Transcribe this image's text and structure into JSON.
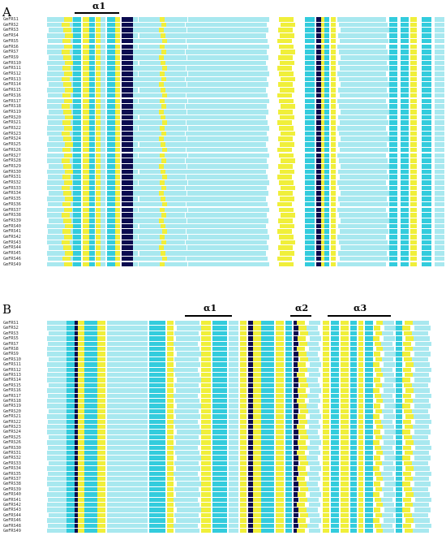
{
  "colors": {
    "identity": "#0b0b50",
    "high": "#33ccdd",
    "mid": "#a8e8ef",
    "low": "#f0ef3a",
    "text": "#333333"
  },
  "panels": [
    {
      "letter": "A",
      "helices": [
        {
          "label": "α1"
        }
      ],
      "sequences": [
        "GmFRS1",
        "GmFRS2",
        "GmFRS3",
        "GmFRS4",
        "GmFRS5",
        "GmFRS6",
        "GmFRS7",
        "GmFRS9",
        "GmFRS10",
        "GmFRS11",
        "GmFRS12",
        "GmFRS13",
        "GmFRS14",
        "GmFRS15",
        "GmFRS16",
        "GmFRS17",
        "GmFRS18",
        "GmFRS19",
        "GmFRS20",
        "GmFRS21",
        "GmFRS22",
        "GmFRS23",
        "GmFRS24",
        "GmFRS25",
        "GmFRS26",
        "GmFRS27",
        "GmFRS28",
        "GmFRS29",
        "GmFRS30",
        "GmFRS31",
        "GmFRS32",
        "GmFRS33",
        "GmFRS34",
        "GmFRS35",
        "GmFRS36",
        "GmFRS37",
        "GmFRS38",
        "GmFRS39",
        "GmFRS40",
        "GmFRS41",
        "GmFRS42",
        "GmFRS43",
        "GmFRS44",
        "GmFRS45",
        "GmFRS46",
        "GmFRS49"
      ]
    },
    {
      "letter": "B",
      "helices": [
        {
          "label": "α1"
        },
        {
          "label": "α2"
        },
        {
          "label": "α3"
        }
      ],
      "sequences": [
        "GmFRS1",
        "GmFRS2",
        "GmFRS3",
        "GmFRS5",
        "GmFRS7",
        "GmFRS8",
        "GmFRS9",
        "GmFRS10",
        "GmFRS11",
        "GmFRS12",
        "GmFRS13",
        "GmFRS14",
        "GmFRS15",
        "GmFRS16",
        "GmFRS17",
        "GmFRS18",
        "GmFRS19",
        "GmFRS20",
        "GmFRS21",
        "GmFRS22",
        "GmFRS23",
        "GmFRS24",
        "GmFRS25",
        "GmFRS26",
        "GmFRS30",
        "GmFRS31",
        "GmFRS32",
        "GmFRS33",
        "GmFRS34",
        "GmFRS35",
        "GmFRS37",
        "GmFRS38",
        "GmFRS39",
        "GmFRS40",
        "GmFRS41",
        "GmFRS42",
        "GmFRS43",
        "GmFRS44",
        "GmFRS46",
        "GmFRS48",
        "GmFRS49"
      ]
    }
  ]
}
